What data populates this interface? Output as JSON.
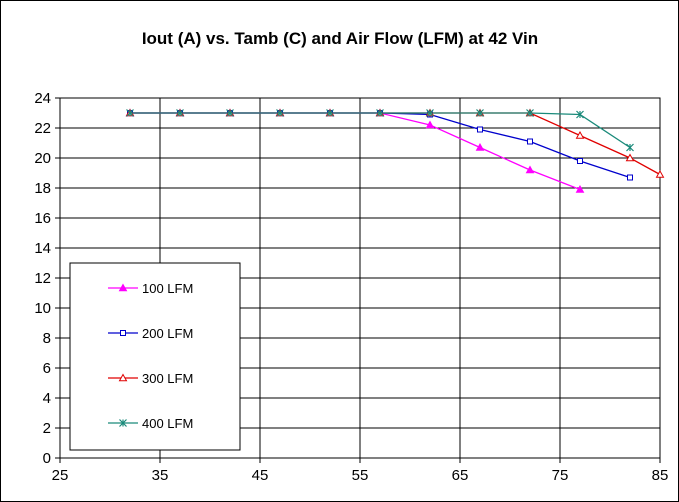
{
  "chart_data": {
    "type": "line",
    "title": "Iout (A) vs. Tamb (C) and Air Flow (LFM) at 42 Vin",
    "xlabel": "",
    "ylabel": "",
    "xlim": [
      25,
      85
    ],
    "ylim": [
      0,
      24
    ],
    "x_ticks": [
      "25",
      "35",
      "45",
      "55",
      "65",
      "75",
      "85"
    ],
    "y_ticks": [
      "0",
      "2",
      "4",
      "6",
      "8",
      "10",
      "12",
      "14",
      "16",
      "18",
      "20",
      "22",
      "24"
    ],
    "grid": true,
    "legend_position": "bottom-left",
    "series": [
      {
        "name": "100 LFM",
        "color": "#ff00ff",
        "marker": "triangle-filled",
        "x": [
          32,
          37,
          42,
          47,
          52,
          57,
          62,
          67,
          72,
          77
        ],
        "y": [
          23,
          23,
          23,
          23,
          23,
          23,
          22.2,
          20.7,
          19.2,
          17.9
        ]
      },
      {
        "name": "200 LFM",
        "color": "#0000cc",
        "marker": "square-open",
        "x": [
          32,
          37,
          42,
          47,
          52,
          57,
          62,
          67,
          72,
          77,
          82
        ],
        "y": [
          23,
          23,
          23,
          23,
          23,
          23,
          22.9,
          21.9,
          21.1,
          19.8,
          18.7
        ]
      },
      {
        "name": "300 LFM",
        "color": "#e00000",
        "marker": "triangle-open",
        "x": [
          32,
          37,
          42,
          47,
          52,
          57,
          62,
          67,
          72,
          77,
          82,
          85
        ],
        "y": [
          23,
          23,
          23,
          23,
          23,
          23,
          23,
          23,
          23,
          21.5,
          20,
          18.9
        ]
      },
      {
        "name": "400 LFM",
        "color": "#1a8a7a",
        "marker": "asterisk",
        "x": [
          32,
          37,
          42,
          47,
          52,
          57,
          62,
          67,
          72,
          77,
          82
        ],
        "y": [
          23,
          23,
          23,
          23,
          23,
          23,
          23,
          23,
          23,
          22.9,
          20.7
        ]
      }
    ]
  }
}
